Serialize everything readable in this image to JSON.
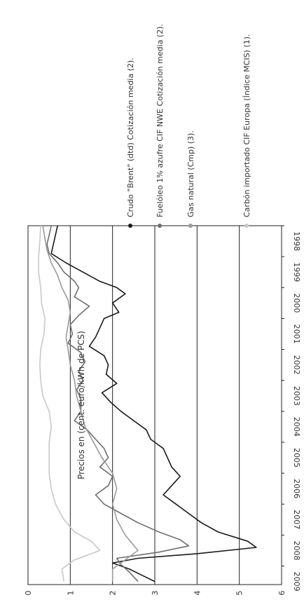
{
  "chart_data": {
    "type": "line",
    "orientation": "rotated-90-clockwise",
    "title": "Precios en (cent. euro/kWh de PCS)",
    "xlabel": "",
    "ylabel": "",
    "x": [
      "1998",
      "1999",
      "2000",
      "2001",
      "2002",
      "2003",
      "2004",
      "2005",
      "2006",
      "2007",
      "2008",
      "2009"
    ],
    "xlim": [
      1998,
      2009.6
    ],
    "ylim": [
      0,
      6
    ],
    "y_ticks": [
      0,
      1,
      2,
      3,
      4,
      5,
      6
    ],
    "grid": "horizontal-major",
    "legend_position": "right-side (rotated)",
    "series": [
      {
        "name": "Crudo \"Brent\" (dtd) Cotización media (2).",
        "color": "#1a1a1a",
        "points": [
          [
            1998.0,
            0.7
          ],
          [
            1998.3,
            0.65
          ],
          [
            1998.6,
            0.6
          ],
          [
            1998.9,
            0.55
          ],
          [
            1999.2,
            0.9
          ],
          [
            1999.5,
            1.3
          ],
          [
            1999.8,
            1.7
          ],
          [
            2000.0,
            2.1
          ],
          [
            2000.2,
            2.3
          ],
          [
            2000.5,
            2.0
          ],
          [
            2000.8,
            2.15
          ],
          [
            2001.0,
            1.8
          ],
          [
            2001.3,
            1.7
          ],
          [
            2001.6,
            1.6
          ],
          [
            2001.9,
            1.45
          ],
          [
            2002.2,
            1.8
          ],
          [
            2002.5,
            1.9
          ],
          [
            2002.8,
            1.85
          ],
          [
            2003.1,
            2.1
          ],
          [
            2003.4,
            1.75
          ],
          [
            2003.7,
            1.95
          ],
          [
            2004.0,
            2.2
          ],
          [
            2004.3,
            2.5
          ],
          [
            2004.6,
            2.8
          ],
          [
            2004.9,
            2.9
          ],
          [
            2005.2,
            3.2
          ],
          [
            2005.5,
            3.3
          ],
          [
            2005.8,
            3.4
          ],
          [
            2006.1,
            3.6
          ],
          [
            2006.4,
            3.4
          ],
          [
            2006.7,
            3.2
          ],
          [
            2007.0,
            3.5
          ],
          [
            2007.3,
            3.8
          ],
          [
            2007.6,
            4.1
          ],
          [
            2007.9,
            4.5
          ],
          [
            2008.2,
            5.2
          ],
          [
            2008.4,
            5.4
          ],
          [
            2008.6,
            4.0
          ],
          [
            2008.75,
            2.6
          ],
          [
            2008.9,
            2.0
          ],
          [
            2009.1,
            2.4
          ],
          [
            2009.3,
            2.7
          ],
          [
            2009.5,
            3.0
          ]
        ]
      },
      {
        "name": "Fuelóleo 1% azufre CIF NWE Cotización media (2).",
        "color": "#6e6e6e",
        "points": [
          [
            1998.0,
            0.55
          ],
          [
            1998.3,
            0.5
          ],
          [
            1998.6,
            0.45
          ],
          [
            1998.9,
            0.5
          ],
          [
            1999.2,
            0.7
          ],
          [
            1999.5,
            0.85
          ],
          [
            1999.8,
            1.1
          ],
          [
            2000.0,
            1.2
          ],
          [
            2000.3,
            1.1
          ],
          [
            2000.6,
            1.45
          ],
          [
            2000.9,
            1.2
          ],
          [
            2001.2,
            1.0
          ],
          [
            2001.5,
            1.05
          ],
          [
            2001.8,
            0.95
          ],
          [
            2002.1,
            1.25
          ],
          [
            2002.4,
            1.35
          ],
          [
            2002.7,
            1.2
          ],
          [
            2003.0,
            1.3
          ],
          [
            2003.3,
            1.15
          ],
          [
            2003.6,
            1.25
          ],
          [
            2004.0,
            1.25
          ],
          [
            2004.3,
            1.1
          ],
          [
            2004.6,
            1.4
          ],
          [
            2004.9,
            1.6
          ],
          [
            2005.2,
            1.8
          ],
          [
            2005.5,
            1.9
          ],
          [
            2005.8,
            1.7
          ],
          [
            2006.1,
            2.0
          ],
          [
            2006.4,
            1.9
          ],
          [
            2006.7,
            1.6
          ],
          [
            2007.0,
            1.8
          ],
          [
            2007.3,
            2.2
          ],
          [
            2007.6,
            2.6
          ],
          [
            2007.9,
            3.1
          ],
          [
            2008.15,
            3.6
          ],
          [
            2008.35,
            3.8
          ],
          [
            2008.55,
            3.1
          ],
          [
            2008.75,
            2.1
          ],
          [
            2008.95,
            2.2
          ],
          [
            2009.2,
            2.4
          ],
          [
            2009.5,
            2.6
          ]
        ]
      },
      {
        "name": "Gas natural (Cmp) (3).",
        "color": "#9a9a9a",
        "points": [
          [
            1998.0,
            0.35
          ],
          [
            1998.4,
            0.4
          ],
          [
            1998.8,
            0.45
          ],
          [
            1999.2,
            0.55
          ],
          [
            1999.6,
            0.7
          ],
          [
            2000.0,
            0.8
          ],
          [
            2000.4,
            0.95
          ],
          [
            2000.8,
            1.0
          ],
          [
            2001.2,
            0.95
          ],
          [
            2001.6,
            0.9
          ],
          [
            2002.0,
            0.95
          ],
          [
            2002.5,
            1.0
          ],
          [
            2003.0,
            1.1
          ],
          [
            2003.5,
            1.15
          ],
          [
            2004.0,
            1.25
          ],
          [
            2004.5,
            1.35
          ],
          [
            2005.0,
            1.55
          ],
          [
            2005.5,
            1.75
          ],
          [
            2006.0,
            2.0
          ],
          [
            2006.5,
            2.1
          ],
          [
            2007.0,
            2.0
          ],
          [
            2007.5,
            2.1
          ],
          [
            2008.0,
            2.3
          ],
          [
            2008.5,
            2.6
          ],
          [
            2008.8,
            2.3
          ],
          [
            2009.1,
            2.0
          ],
          [
            2009.5,
            2.0
          ]
        ]
      },
      {
        "name": "Carbón importado CIF Europa (Índice MCIS) (1).",
        "color": "#c8c8c8",
        "points": [
          [
            1998.0,
            0.3
          ],
          [
            1998.5,
            0.28
          ],
          [
            1999.0,
            0.25
          ],
          [
            1999.5,
            0.25
          ],
          [
            2000.0,
            0.3
          ],
          [
            2000.5,
            0.32
          ],
          [
            2001.0,
            0.4
          ],
          [
            2001.5,
            0.38
          ],
          [
            2002.0,
            0.3
          ],
          [
            2002.5,
            0.28
          ],
          [
            2003.0,
            0.3
          ],
          [
            2003.5,
            0.35
          ],
          [
            2004.0,
            0.5
          ],
          [
            2004.5,
            0.55
          ],
          [
            2005.0,
            0.5
          ],
          [
            2005.5,
            0.5
          ],
          [
            2006.0,
            0.5
          ],
          [
            2006.5,
            0.55
          ],
          [
            2007.0,
            0.65
          ],
          [
            2007.5,
            0.85
          ],
          [
            2007.9,
            1.1
          ],
          [
            2008.2,
            1.5
          ],
          [
            2008.5,
            1.7
          ],
          [
            2008.8,
            1.1
          ],
          [
            2009.1,
            0.8
          ],
          [
            2009.5,
            0.85
          ]
        ]
      }
    ]
  }
}
